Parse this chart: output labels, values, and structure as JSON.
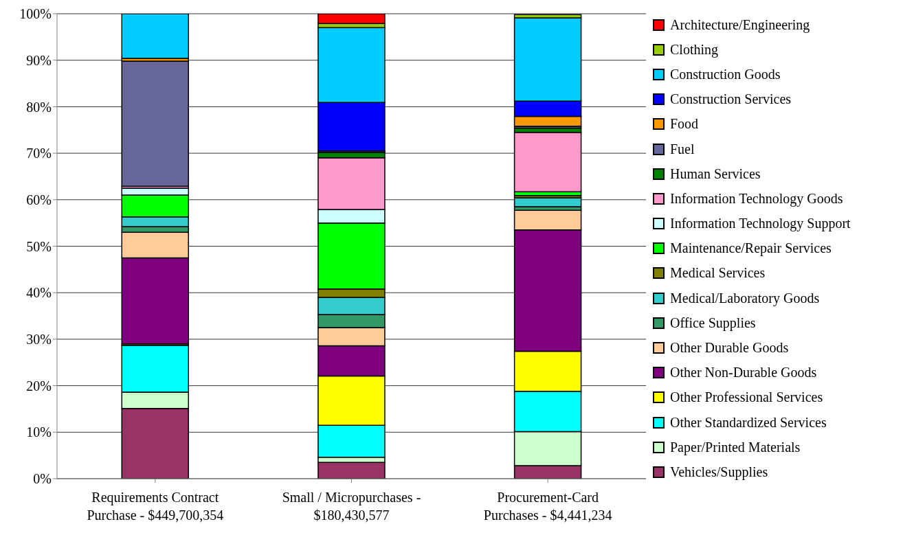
{
  "chart_data": {
    "type": "bar",
    "stacked": true,
    "categories": [
      "Requirements Contract Purchase - $449,700,354",
      "Small / Micropurchases - $180,430,577",
      "Procurement-Card Purchases - $4,441,234"
    ],
    "ylim": [
      0,
      100
    ],
    "yticks": [
      {
        "value": 0,
        "label": "0%"
      },
      {
        "value": 10,
        "label": "10%"
      },
      {
        "value": 20,
        "label": "20%"
      },
      {
        "value": 30,
        "label": "30%"
      },
      {
        "value": 40,
        "label": "40%"
      },
      {
        "value": 50,
        "label": "50%"
      },
      {
        "value": 60,
        "label": "60%"
      },
      {
        "value": 70,
        "label": "70%"
      },
      {
        "value": 80,
        "label": "80%"
      },
      {
        "value": 90,
        "label": "90%"
      },
      {
        "value": 100,
        "label": "100%"
      }
    ],
    "grid": "y",
    "legend": "right",
    "series": [
      {
        "name": "Vehicles/Supplies",
        "color": "#993366",
        "values": [
          15.1,
          3.5,
          2.8
        ]
      },
      {
        "name": "Paper/Printed Materials",
        "color": "#ccffcc",
        "values": [
          3.5,
          1.1,
          7.3
        ]
      },
      {
        "name": "Other Standardized Services",
        "color": "#00ffff",
        "values": [
          10.1,
          6.9,
          8.7
        ]
      },
      {
        "name": "Other Professional Services",
        "color": "#ffff00",
        "values": [
          0.3,
          10.6,
          8.6
        ]
      },
      {
        "name": "Other Non-Durable Goods",
        "color": "#800080",
        "values": [
          18.5,
          6.5,
          26.1
        ]
      },
      {
        "name": "Other Durable Goods",
        "color": "#ffcc99",
        "values": [
          5.5,
          3.9,
          4.2
        ]
      },
      {
        "name": "Office Supplies",
        "color": "#339966",
        "values": [
          1.2,
          2.8,
          0.8
        ]
      },
      {
        "name": "Medical/Laboratory Goods",
        "color": "#33cccc",
        "values": [
          2.1,
          3.7,
          1.9
        ]
      },
      {
        "name": "Medical Services",
        "color": "#808000",
        "values": [
          0,
          1.8,
          0.5
        ]
      },
      {
        "name": "Maintenance/Repair Services",
        "color": "#00ff00",
        "values": [
          4.7,
          14.2,
          0.8
        ]
      },
      {
        "name": "Information Technology Support",
        "color": "#ccffff",
        "values": [
          1.5,
          2.9,
          null
        ]
      },
      {
        "name": "Information Technology Goods",
        "color": "#ff99cc",
        "values": [
          0.4,
          11.1,
          12.8
        ]
      },
      {
        "name": "Human Services",
        "color": "#008000",
        "values": [
          0,
          1.2,
          0.9
        ]
      },
      {
        "name": "Fuel",
        "color": "#666699",
        "values": [
          26.9,
          0.3,
          0.4
        ]
      },
      {
        "name": "Food",
        "color": "#ff9900",
        "values": [
          0.6,
          0,
          2.1
        ]
      },
      {
        "name": "Construction Services",
        "color": "#0000ff",
        "values": [
          0,
          10.4,
          3.3
        ]
      },
      {
        "name": "Construction Goods",
        "color": "#00ccff",
        "values": [
          9.6,
          16.1,
          17.9
        ]
      },
      {
        "name": "Clothing",
        "color": "#99cc00",
        "values": [
          0,
          0.9,
          0.7
        ]
      },
      {
        "name": "Architecture/Engineering",
        "color": "#ff0000",
        "values": [
          0,
          2.1,
          0
        ]
      }
    ]
  }
}
